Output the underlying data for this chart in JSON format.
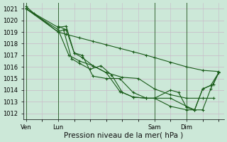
{
  "title": "",
  "xlabel": "Pression niveau de la mer( hPa )",
  "ylabel": "",
  "bg_color": "#cce8d8",
  "grid_color": "#c8b8c8",
  "line_color": "#1a5c1a",
  "vline_color": "#3a6a3a",
  "ylim": [
    1011.5,
    1021.5
  ],
  "yticks": [
    1012,
    1013,
    1014,
    1015,
    1016,
    1017,
    1018,
    1019,
    1020,
    1021
  ],
  "xtick_labels": [
    "Ven",
    "Lun",
    "Sam",
    "Dim"
  ],
  "xtick_positions": [
    0,
    24,
    96,
    120
  ],
  "xlim": [
    -2,
    148
  ],
  "vlines": [
    0,
    24,
    96,
    120
  ],
  "lines": [
    {
      "x": [
        0,
        6,
        24,
        30,
        40,
        50,
        60,
        70,
        80,
        90,
        96,
        108,
        120,
        132,
        144
      ],
      "y": [
        1021.2,
        1020.6,
        1019.0,
        1018.8,
        1018.5,
        1018.2,
        1017.9,
        1017.6,
        1017.3,
        1017.0,
        1016.8,
        1016.4,
        1016.0,
        1015.7,
        1015.6
      ],
      "markers_at": [
        0,
        6,
        24
      ]
    },
    {
      "x": [
        0,
        24,
        30,
        36,
        42,
        50,
        60,
        72,
        84,
        96,
        108,
        120,
        132,
        140
      ],
      "y": [
        1021.0,
        1019.4,
        1019.5,
        1017.2,
        1016.8,
        1016.1,
        1015.5,
        1015.1,
        1015.0,
        1014.1,
        1013.6,
        1013.3,
        1013.3,
        1013.3
      ],
      "markers_at": [
        0,
        24,
        30,
        36,
        42,
        50,
        60,
        72,
        84,
        96,
        108,
        120,
        132,
        140
      ]
    },
    {
      "x": [
        0,
        24,
        28,
        34,
        40,
        48,
        56,
        64,
        72,
        80,
        90,
        96,
        108,
        120,
        126,
        132,
        138,
        144
      ],
      "y": [
        1021.0,
        1019.0,
        1019.2,
        1016.7,
        1016.3,
        1015.8,
        1016.1,
        1015.3,
        1013.8,
        1013.4,
        1013.3,
        1013.3,
        1012.6,
        1012.3,
        1012.3,
        1014.1,
        1014.4,
        1015.5
      ],
      "markers_at": [
        0,
        24,
        28,
        34,
        40,
        48,
        56,
        64,
        72,
        80,
        90,
        96,
        108,
        120,
        126,
        132,
        138,
        144
      ]
    },
    {
      "x": [
        0,
        24,
        32,
        40,
        50,
        60,
        70,
        80,
        90,
        96,
        108,
        120,
        126,
        132,
        140,
        144
      ],
      "y": [
        1021.0,
        1019.2,
        1017.0,
        1016.5,
        1016.1,
        1015.5,
        1013.9,
        1013.4,
        1013.3,
        1013.3,
        1013.3,
        1012.6,
        1012.3,
        1014.1,
        1014.5,
        1015.5
      ],
      "markers_at": [
        0,
        24,
        32,
        40,
        50,
        60,
        70,
        80,
        90,
        96,
        108,
        120,
        126,
        132,
        140,
        144
      ]
    },
    {
      "x": [
        24,
        30,
        36,
        42,
        50,
        60,
        70,
        80,
        90,
        96,
        108,
        114,
        120,
        126,
        132,
        138,
        144
      ],
      "y": [
        1019.5,
        1019.2,
        1017.2,
        1017.0,
        1015.2,
        1015.0,
        1015.0,
        1013.8,
        1013.3,
        1013.3,
        1014.0,
        1013.8,
        1012.5,
        1012.3,
        1012.3,
        1014.1,
        1015.5
      ],
      "markers_at": [
        24,
        30,
        36,
        42,
        50,
        60,
        70,
        80,
        90,
        96,
        108,
        114,
        120,
        126,
        132,
        138,
        144
      ]
    }
  ],
  "marker": "+",
  "marker_size": 3,
  "linewidth": 0.8,
  "tick_fontsize": 6,
  "xlabel_fontsize": 7.5
}
